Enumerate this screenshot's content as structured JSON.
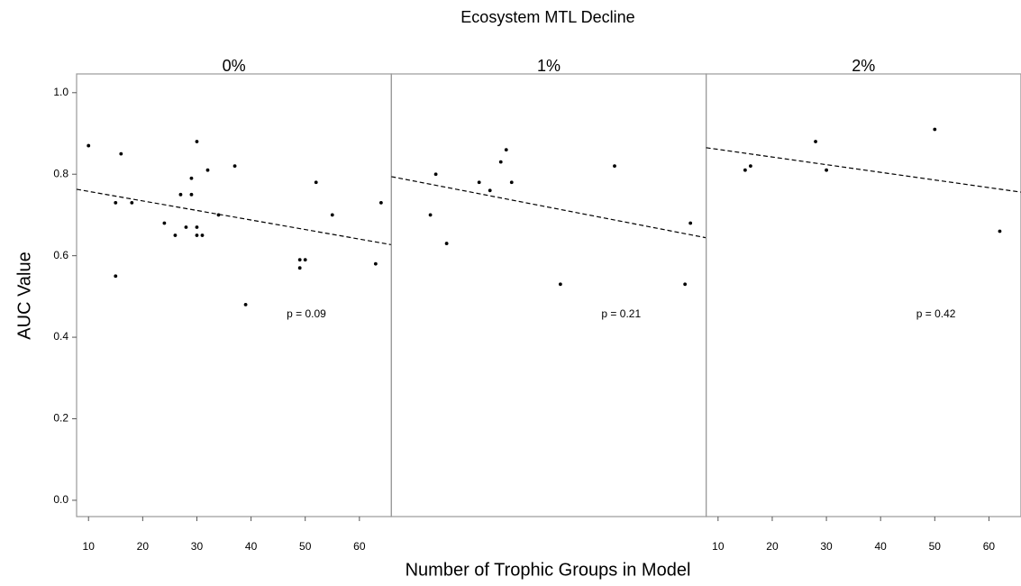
{
  "figure": {
    "title": "Ecosystem MTL Decline",
    "x_label": "Number of Trophic Groups in Model",
    "y_label": "AUC Value"
  },
  "chart_data": [
    {
      "type": "scatter",
      "title": "0%",
      "color": "#000000",
      "x": [
        10,
        15,
        15,
        16,
        18,
        24,
        26,
        27,
        28,
        29,
        29,
        30,
        30,
        30,
        31,
        32,
        34,
        37,
        39,
        49,
        49,
        50,
        52,
        55,
        63,
        64
      ],
      "values": [
        0.87,
        0.73,
        0.55,
        0.85,
        0.73,
        0.68,
        0.65,
        0.75,
        0.67,
        0.79,
        0.75,
        0.88,
        0.67,
        0.65,
        0.65,
        0.81,
        0.7,
        0.82,
        0.48,
        0.59,
        0.57,
        0.59,
        0.78,
        0.7,
        0.58,
        0.73
      ],
      "trend": {
        "x": [
          7.8,
          65.9
        ],
        "values": [
          0.763,
          0.627
        ]
      },
      "annotation": "p = 0.09",
      "xlim": [
        7.8,
        65.9
      ],
      "ylim": [
        -0.04,
        1.046
      ],
      "xticks": [
        10,
        20,
        30,
        40,
        50,
        60
      ],
      "yticks": [
        {
          "value": 0,
          "label": "0.0"
        },
        0.2,
        0.4,
        0.6,
        0.8,
        {
          "value": 1,
          "label": "1.0"
        }
      ]
    },
    {
      "type": "scatter",
      "title": "1%",
      "color": "#000000",
      "x": [
        15,
        16,
        18,
        24,
        26,
        28,
        29,
        30,
        39,
        49,
        62,
        63
      ],
      "values": [
        0.7,
        0.8,
        0.63,
        0.78,
        0.76,
        0.83,
        0.86,
        0.78,
        0.53,
        0.82,
        0.53,
        0.68
      ],
      "trend": {
        "x": [
          7.8,
          65.9
        ],
        "values": [
          0.794,
          0.644
        ]
      },
      "annotation": "p = 0.21",
      "xlim": [
        7.8,
        65.9
      ],
      "ylim": [
        -0.04,
        1.046
      ]
    },
    {
      "type": "scatter",
      "title": "2%",
      "color": "#000000",
      "x": [
        15,
        16,
        28,
        30,
        50,
        62
      ],
      "values": [
        0.81,
        0.82,
        0.88,
        0.81,
        0.91,
        0.66
      ],
      "trend": {
        "x": [
          7.8,
          65.9
        ],
        "values": [
          0.865,
          0.756
        ]
      },
      "annotation": "p = 0.42",
      "xlim": [
        7.8,
        65.9
      ],
      "ylim": [
        -0.04,
        1.046
      ],
      "xticks": [
        10,
        20,
        30,
        40,
        50,
        60
      ]
    }
  ]
}
